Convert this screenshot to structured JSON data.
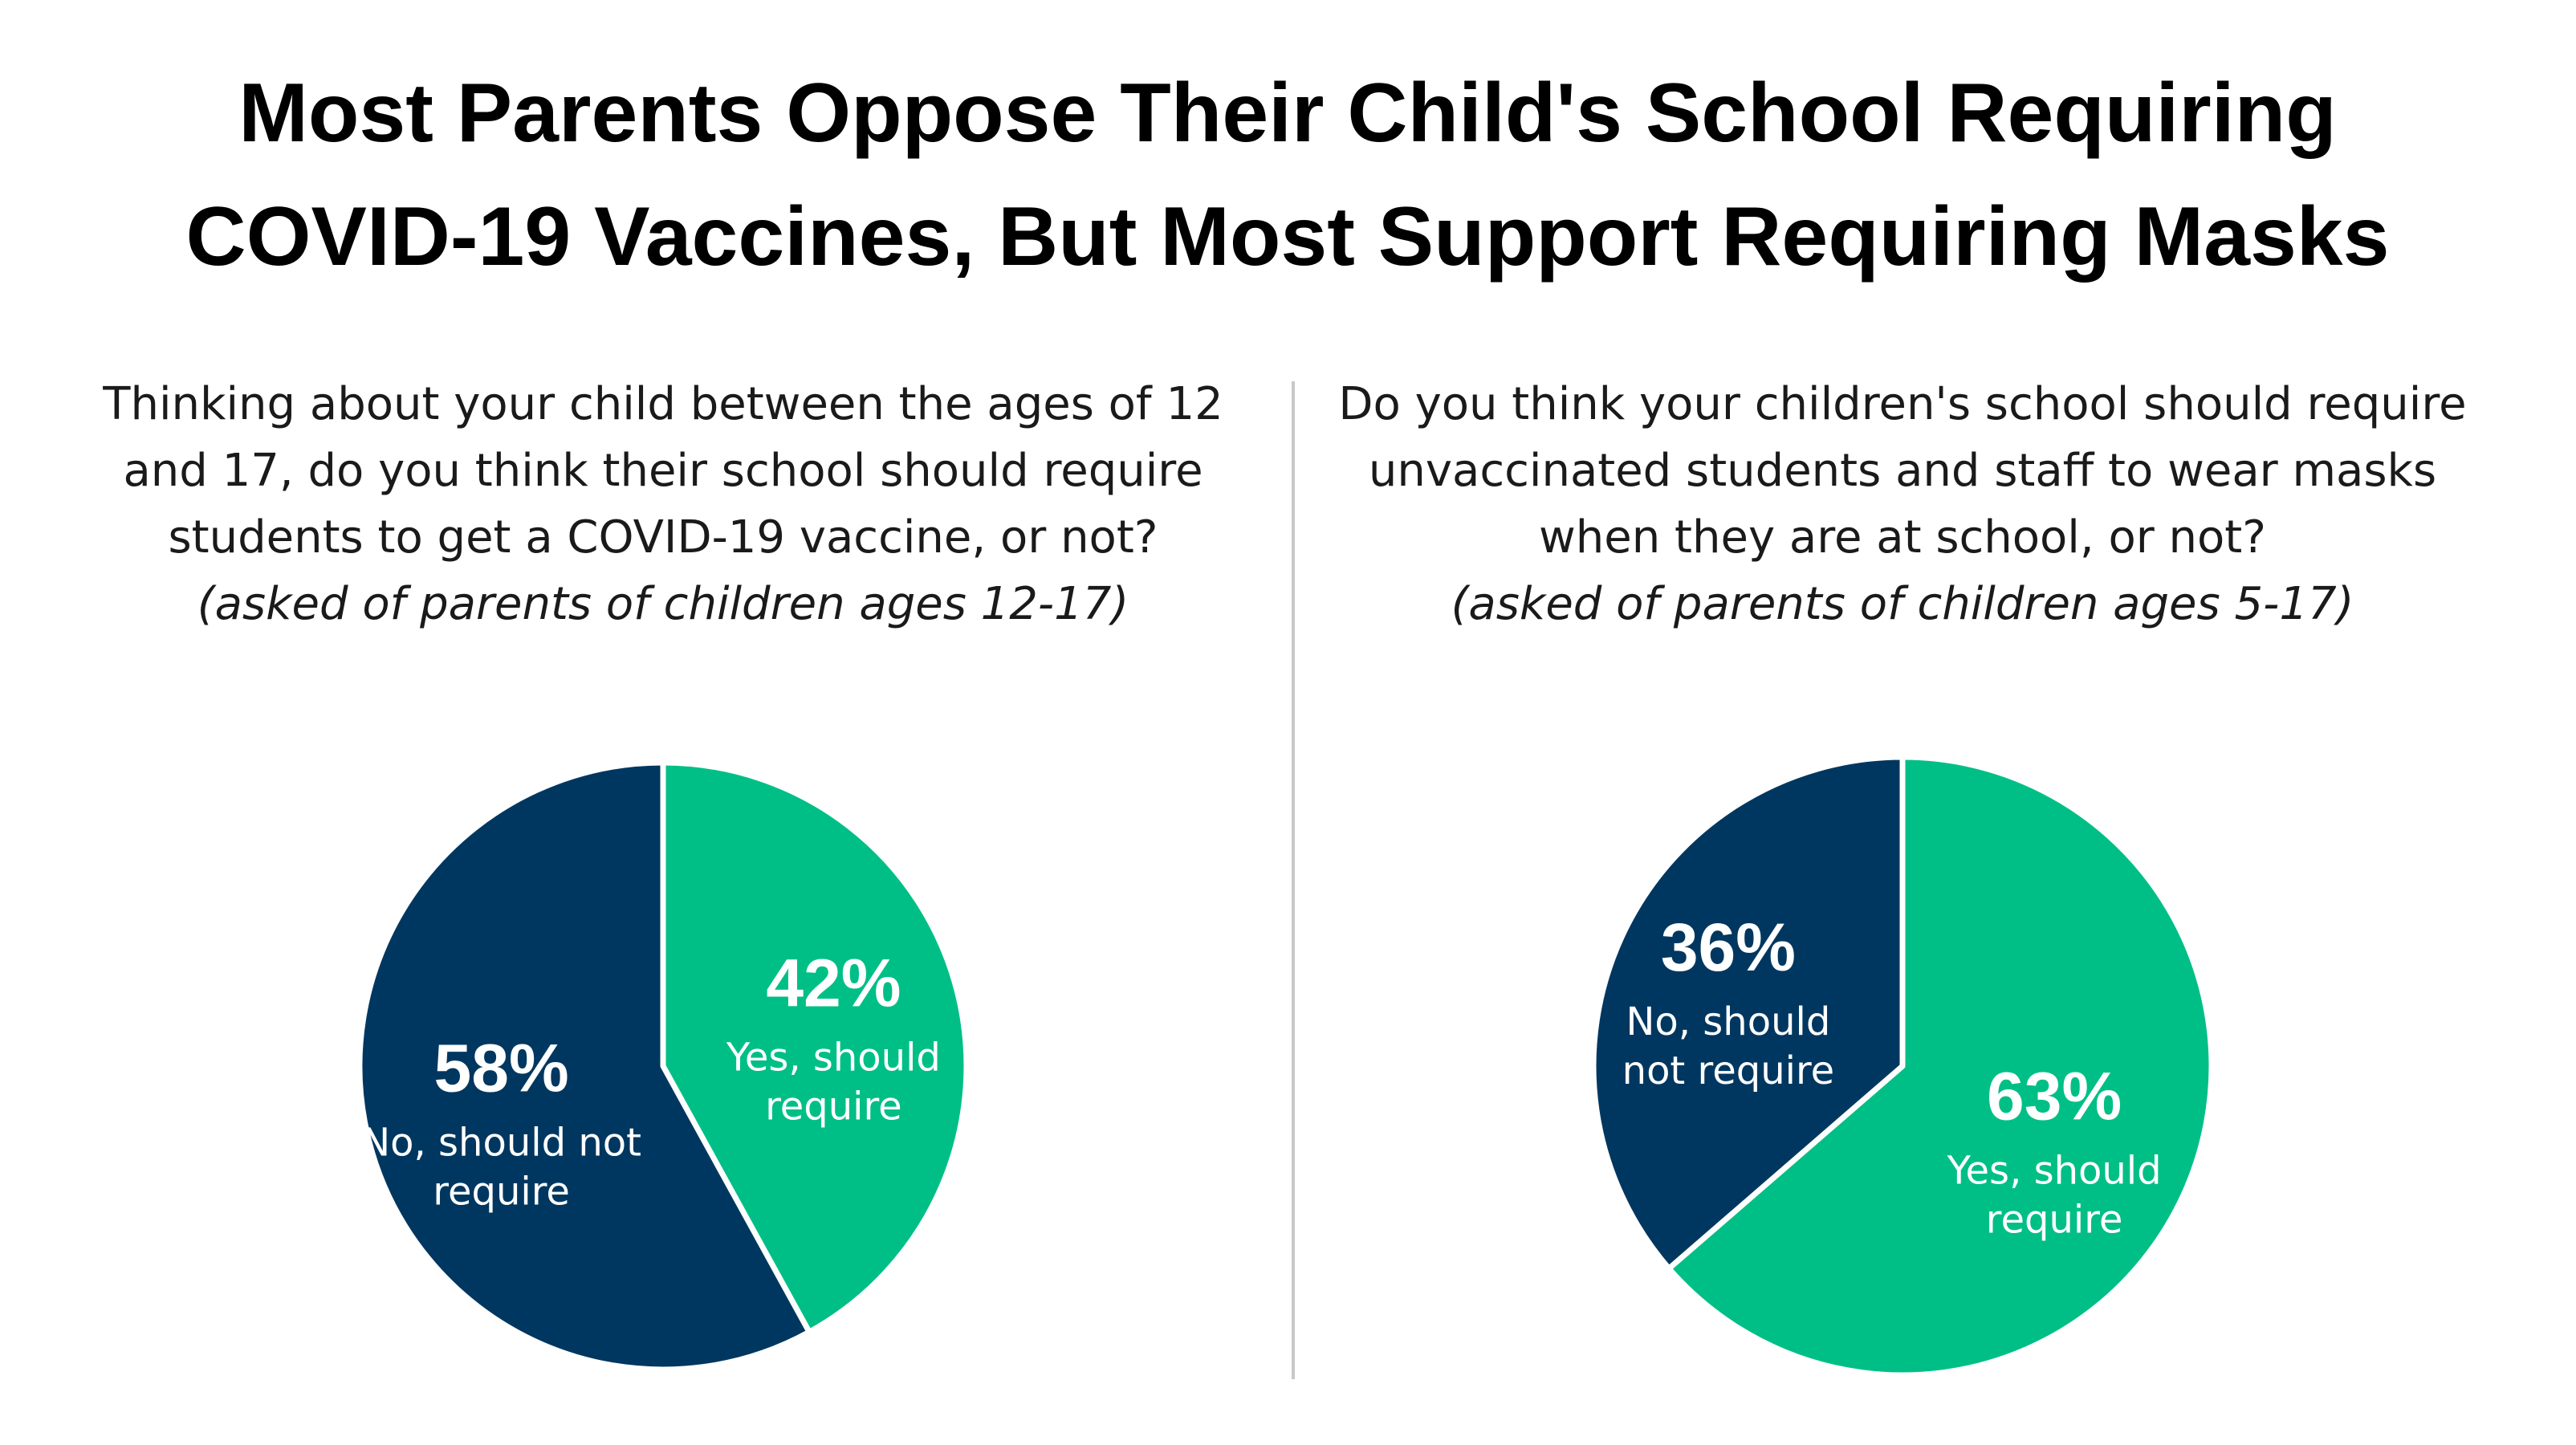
{
  "title_lines": [
    "Most Parents Oppose Their Child's School Requiring",
    "COVID-19 Vaccines, But Most Support Requiring Masks"
  ],
  "chart_data": [
    {
      "type": "pie",
      "question_lines": [
        "Thinking about your child between the ages of 12",
        "and 17, do you think their school should require",
        "students to get a COVID-19 vaccine, or not?"
      ],
      "note": "(asked of parents of children ages 12-17)",
      "slices": [
        {
          "label": "Yes, should require",
          "label_lines": [
            "Yes, should",
            "require"
          ],
          "value": 42,
          "display": "42%",
          "color": "#00BF86"
        },
        {
          "label": "No, should not require",
          "label_lines": [
            "No, should not",
            "require"
          ],
          "value": 58,
          "display": "58%",
          "color": "#003760"
        }
      ]
    },
    {
      "type": "pie",
      "question_lines": [
        "Do you think your children's school should require",
        "unvaccinated students and staff to wear masks",
        "when they are at school, or not?"
      ],
      "note": "(asked of parents of children ages 5-17)",
      "slices": [
        {
          "label": "Yes, should require",
          "label_lines": [
            "Yes, should",
            "require"
          ],
          "value": 63,
          "display": "63%",
          "color": "#00BF86"
        },
        {
          "label": "No, should not require",
          "label_lines": [
            "No, should",
            "not require"
          ],
          "value": 36,
          "display": "36%",
          "color": "#003760"
        }
      ]
    }
  ]
}
